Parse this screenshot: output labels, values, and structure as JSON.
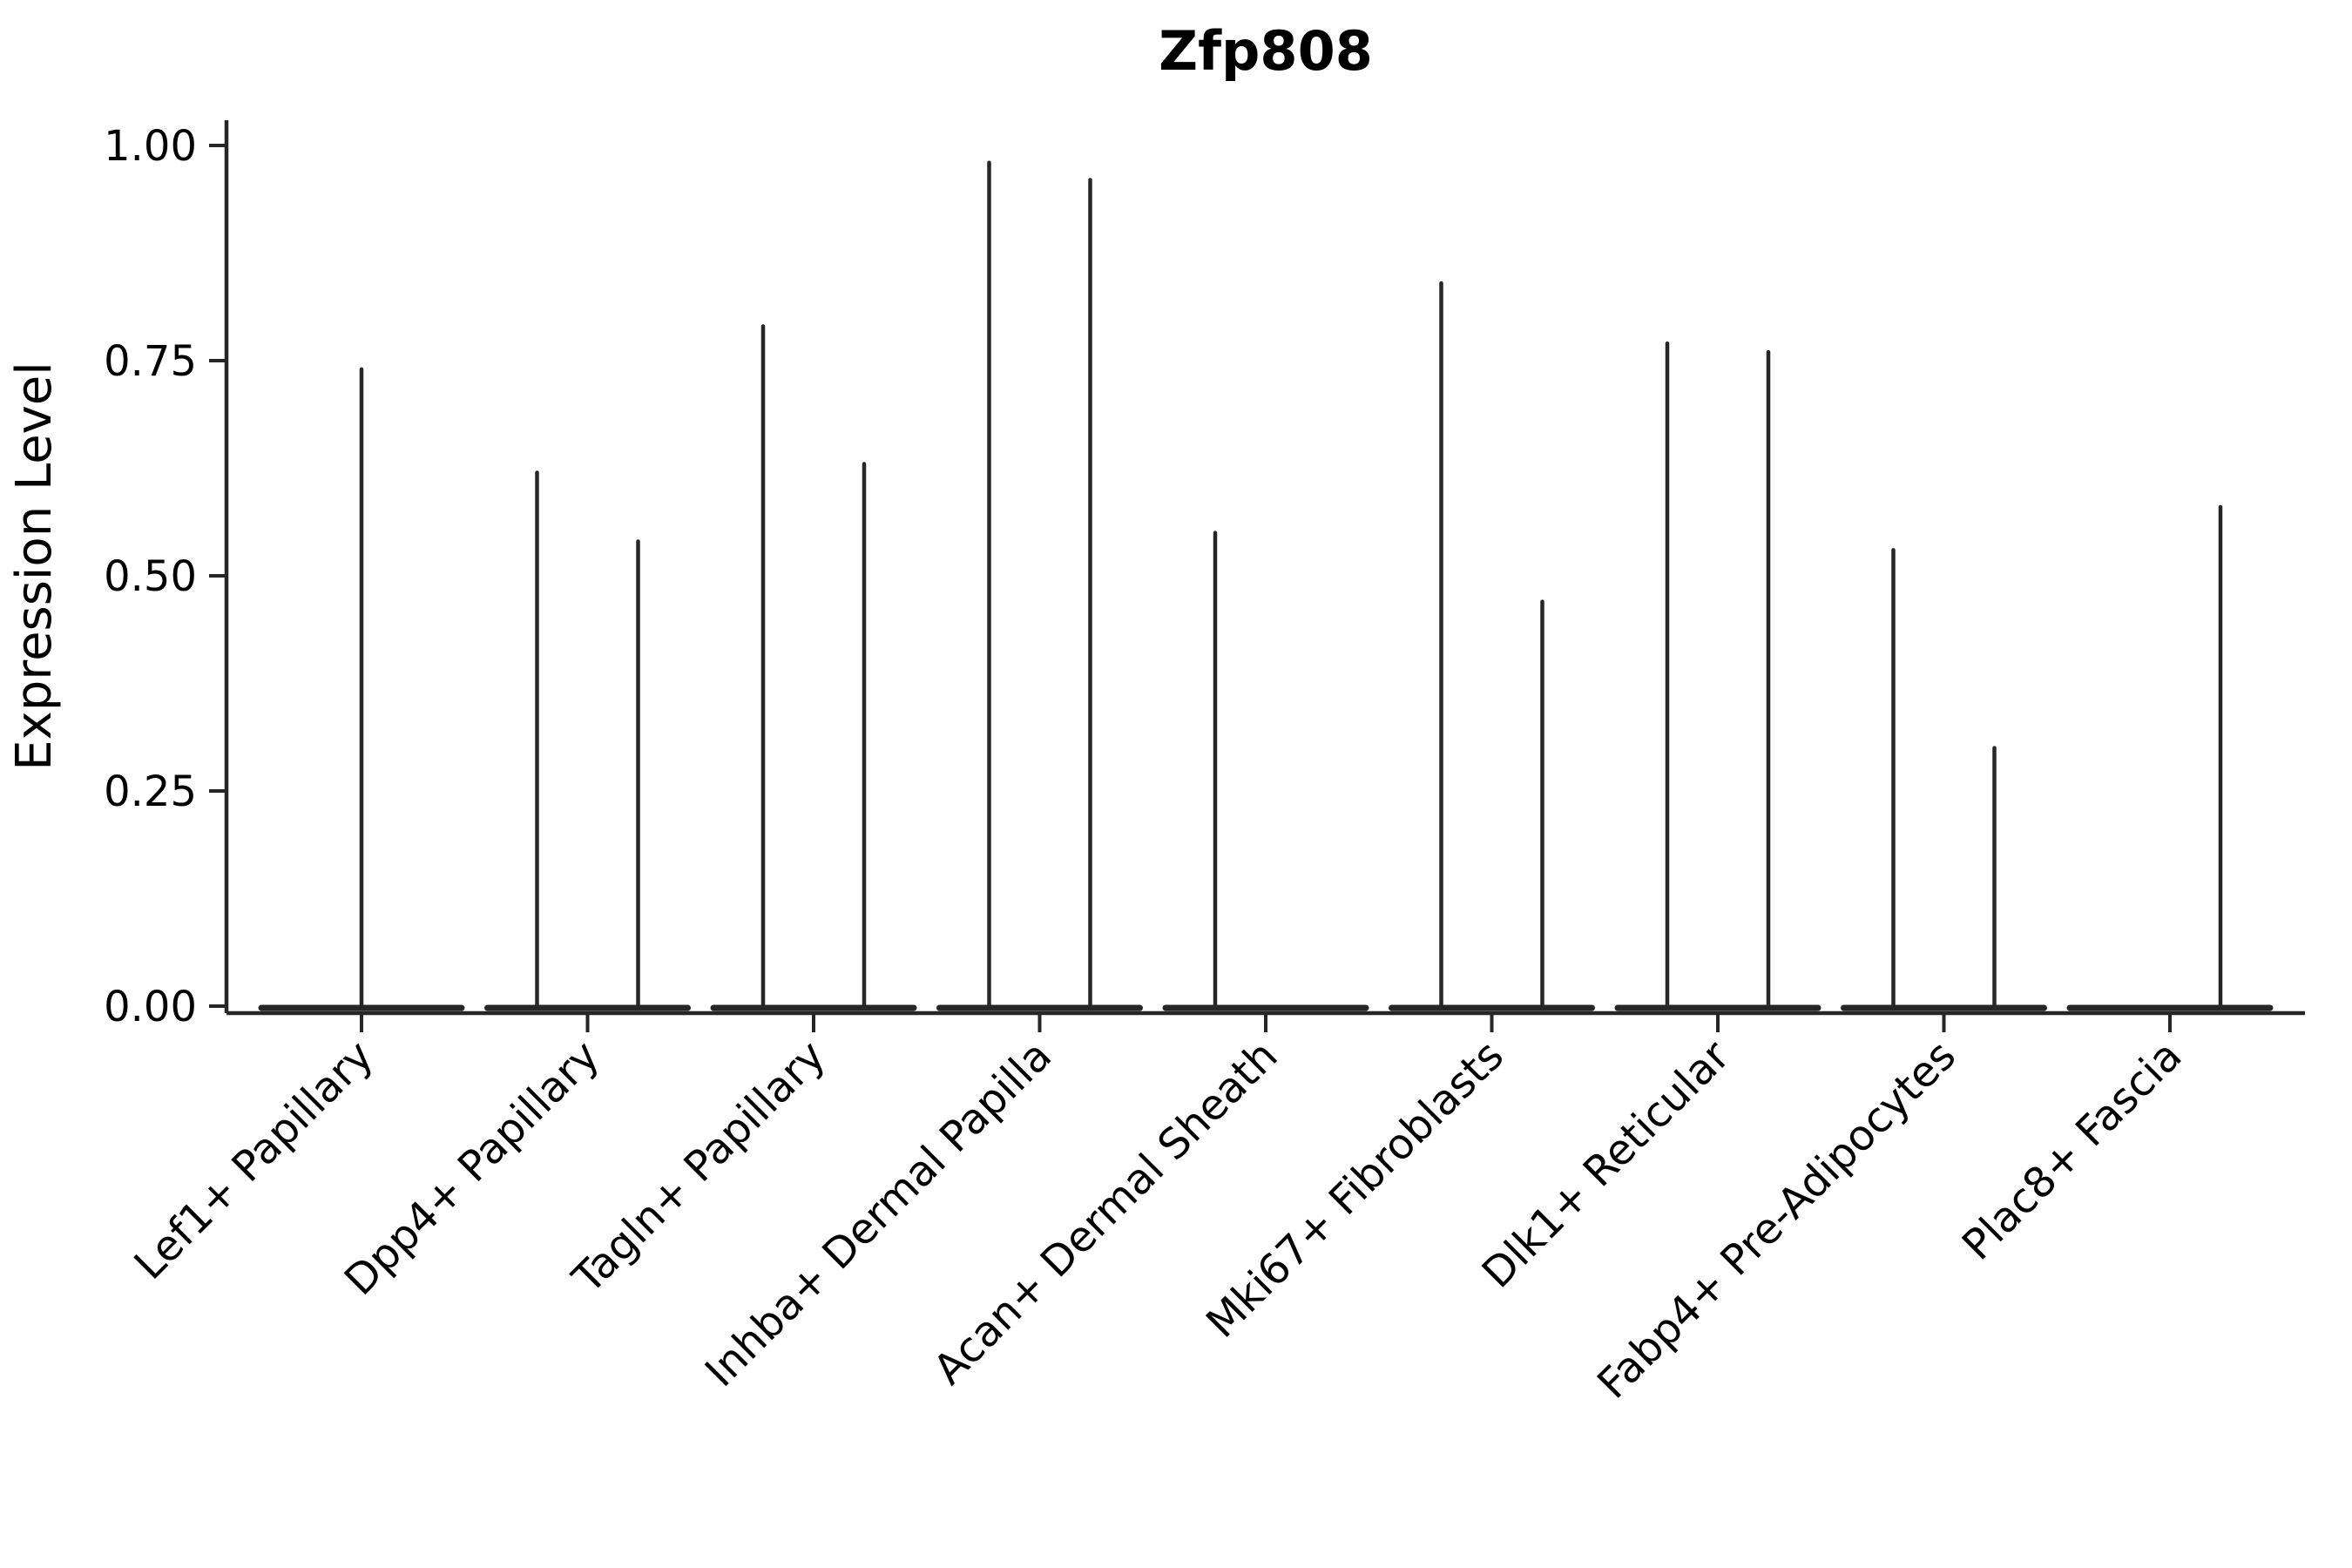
{
  "chart_data": {
    "type": "violin",
    "title": "Zfp808",
    "xlabel": "",
    "ylabel": "Expression Level",
    "ylim": [
      0,
      1.0
    ],
    "yticks": [
      0,
      0.25,
      0.5,
      0.75,
      1.0
    ],
    "ytick_labels": [
      "0.00",
      "0.25",
      "0.50",
      "0.75",
      "1.00"
    ],
    "grid": false,
    "legend": false,
    "line_color": "#262626",
    "background_color": "#ffffff",
    "categories": [
      "Lef1+ Papillary",
      "Dpp4+ Papillary",
      "Tagln+ Papillary",
      "Inhba+ Dermal Papilla",
      "Acan+ Dermal Sheath",
      "Mki67+ Fibroblasts",
      "Dlk1+ Reticular",
      "Fabp4+ Pre-Adipocytes",
      "Plac8+ Fascia"
    ],
    "baseline_value": 0,
    "series": [
      {
        "category": "Lef1+ Papillary",
        "needles": [
          {
            "position": "center",
            "max": 0.74
          }
        ]
      },
      {
        "category": "Dpp4+ Papillary",
        "needles": [
          {
            "position": "left",
            "max": 0.62
          },
          {
            "position": "right",
            "max": 0.54
          }
        ]
      },
      {
        "category": "Tagln+ Papillary",
        "needles": [
          {
            "position": "left",
            "max": 0.79
          },
          {
            "position": "right",
            "max": 0.63
          }
        ]
      },
      {
        "category": "Inhba+ Dermal Papilla",
        "needles": [
          {
            "position": "left",
            "max": 0.98
          },
          {
            "position": "right",
            "max": 0.96
          }
        ]
      },
      {
        "category": "Acan+ Dermal Sheath",
        "needles": [
          {
            "position": "left",
            "max": 0.55
          }
        ]
      },
      {
        "category": "Mki67+ Fibroblasts",
        "needles": [
          {
            "position": "left",
            "max": 0.84
          },
          {
            "position": "right",
            "max": 0.47
          }
        ]
      },
      {
        "category": "Dlk1+ Reticular",
        "needles": [
          {
            "position": "left",
            "max": 0.77
          },
          {
            "position": "right",
            "max": 0.76
          }
        ]
      },
      {
        "category": "Fabp4+ Pre-Adipocytes",
        "needles": [
          {
            "position": "left",
            "max": 0.53
          },
          {
            "position": "right",
            "max": 0.3
          }
        ]
      },
      {
        "category": "Plac8+ Fascia",
        "needles": [
          {
            "position": "right",
            "max": 0.58
          }
        ]
      }
    ]
  }
}
